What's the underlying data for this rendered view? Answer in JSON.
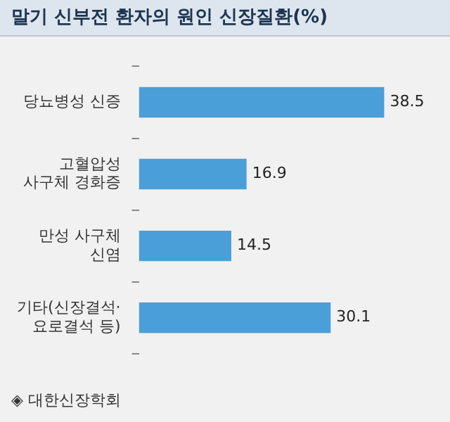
{
  "chart_data": {
    "type": "bar",
    "orientation": "horizontal",
    "title": "말기 신부전 환자의 원인 신장질환(%)",
    "categories": [
      "당뇨병성 신증",
      "고혈압성 사구체 경화증",
      "만성 사구체 신염",
      "기타(신장결석·요로결석 등)"
    ],
    "values": [
      38.5,
      16.9,
      14.5,
      30.1
    ],
    "colors": [
      "#4a9fd8",
      "#4a9fd8",
      "#4a9fd8",
      "#4a9fd8"
    ],
    "data_labels": true,
    "tick_labels": "y",
    "legend": false,
    "annotations": [
      "◈ 대한신장학회"
    ]
  }
}
